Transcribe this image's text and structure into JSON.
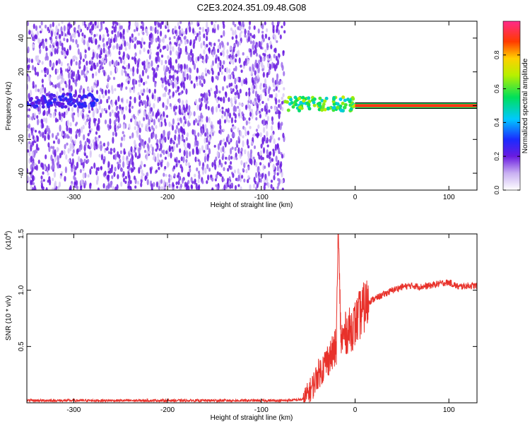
{
  "figure_title": "C2E3.2024.351.09.48.G08",
  "colors": {
    "spectrogram_dots": "#6a1be0",
    "snr_line": "#e8312a",
    "axis": "#000000"
  },
  "chart_data": [
    {
      "type": "heatmap",
      "title": "C2E3.2024.351.09.48.G08",
      "xlabel": "Height of straight line (km)",
      "ylabel": "Frequency (Hz)",
      "xlim": [
        -350,
        130
      ],
      "ylim": [
        -50,
        50
      ],
      "xticks": [
        -300,
        -200,
        -100,
        0,
        100
      ],
      "yticks": [
        -40,
        -20,
        0,
        20,
        40
      ],
      "colorbar": {
        "label": "Normalized spectral amplitude",
        "range": [
          0,
          1
        ],
        "ticks": [
          0.0,
          0.2,
          0.4,
          0.6,
          0.8
        ],
        "tick_labels": [
          "0.0",
          "0.2",
          "0.4",
          "0.6",
          "0.8"
        ],
        "colormap": "rainbow"
      },
      "features": [
        {
          "kind": "scattered_noise",
          "x_range": [
            -350,
            -75
          ],
          "y_range": [
            -50,
            50
          ],
          "amplitude": 0.1
        },
        {
          "kind": "band",
          "x_range": [
            -350,
            -275
          ],
          "y_center": 3,
          "amplitude": 0.3
        },
        {
          "kind": "band",
          "x_range": [
            -75,
            0
          ],
          "y_center": 1,
          "amplitude": 0.7
        },
        {
          "kind": "band",
          "x_range": [
            0,
            130
          ],
          "y_center": 0,
          "amplitude": 1.0
        }
      ]
    },
    {
      "type": "line",
      "xlabel": "Height of straight line (km)",
      "ylabel": "SNR (10 * v/v)",
      "y_multiplier_label": "(x10",
      "y_multiplier_exp": "4",
      "y_multiplier_close": ")",
      "xlim": [
        -350,
        130
      ],
      "ylim": [
        0,
        1.5
      ],
      "xticks": [
        -300,
        -200,
        -100,
        0,
        100
      ],
      "yticks": [
        0.5,
        1.0,
        1.5
      ],
      "ytick_labels": [
        "0.5",
        "1.0",
        "1.5"
      ],
      "series": [
        {
          "x": [
            -350,
            -300,
            -250,
            -200,
            -150,
            -100,
            -75,
            -55,
            -50,
            -45,
            -40,
            -35,
            -30,
            -25,
            -20,
            -18,
            -15,
            -10,
            -5,
            0,
            5,
            10,
            15,
            20,
            30,
            40,
            50,
            60,
            70,
            80,
            90,
            100,
            110,
            120,
            130
          ],
          "y": [
            0.02,
            0.02,
            0.02,
            0.02,
            0.02,
            0.02,
            0.02,
            0.03,
            0.08,
            0.15,
            0.25,
            0.3,
            0.38,
            0.42,
            0.5,
            1.5,
            0.55,
            0.62,
            0.65,
            0.7,
            0.78,
            0.85,
            0.9,
            0.92,
            0.96,
            1.0,
            1.03,
            1.04,
            1.03,
            1.04,
            1.06,
            1.07,
            1.03,
            1.04,
            1.04
          ]
        }
      ]
    }
  ]
}
